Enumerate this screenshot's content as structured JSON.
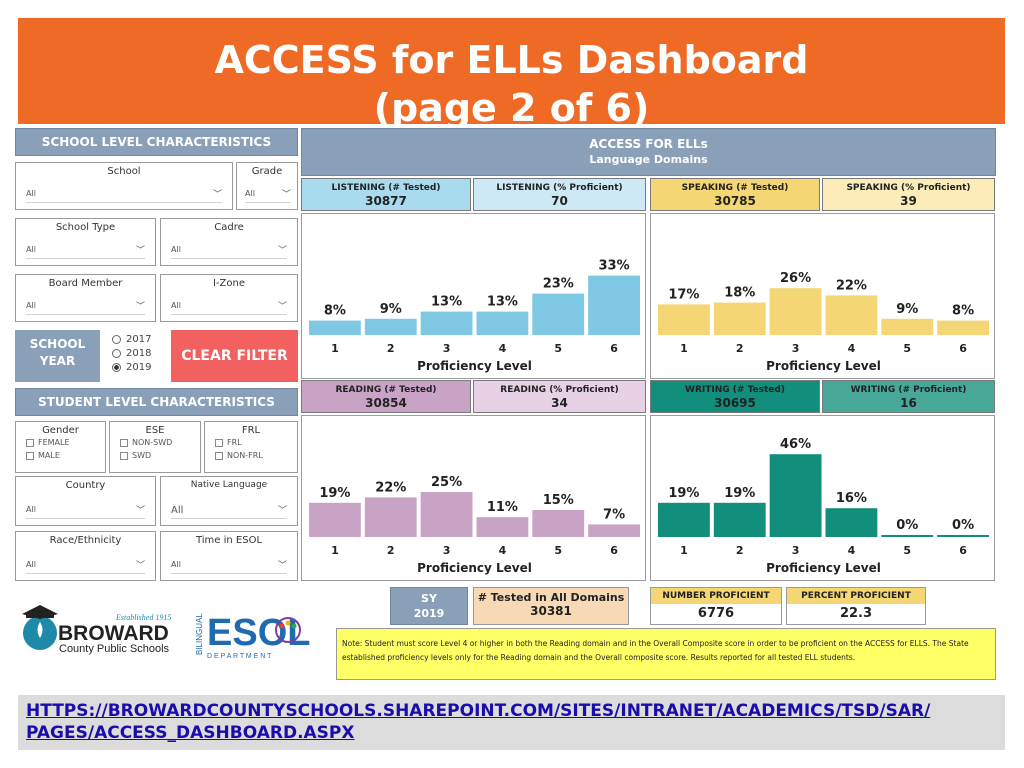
{
  "title": {
    "line1": "ACCESS for ELLs Dashboard",
    "line2": "(page 2 of 6)"
  },
  "school_panel": {
    "heading": "SCHOOL LEVEL CHARACTERISTICS",
    "filters": {
      "school": {
        "label": "School",
        "value": "All"
      },
      "grade": {
        "label": "Grade",
        "value": "All"
      },
      "school_type": {
        "label": "School Type",
        "value": "All"
      },
      "cadre": {
        "label": "Cadre",
        "value": "All"
      },
      "board_member": {
        "label": "Board Member",
        "value": "All"
      },
      "izone": {
        "label": "I-Zone",
        "value": "All"
      }
    },
    "school_year": {
      "label_line1": "SCHOOL",
      "label_line2": "YEAR",
      "options": [
        "2017",
        "2018",
        "2019"
      ],
      "selected": "2019"
    },
    "clear_filter": "CLEAR FILTER"
  },
  "student_panel": {
    "heading": "STUDENT LEVEL CHARACTERISTICS",
    "gender": {
      "label": "Gender",
      "options": [
        "FEMALE",
        "MALE"
      ]
    },
    "ese": {
      "label": "ESE",
      "options": [
        "NON-SWD",
        "SWD"
      ]
    },
    "frl": {
      "label": "FRL",
      "options": [
        "FRL",
        "NON-FRL"
      ]
    },
    "country": {
      "label": "Country",
      "value": "All"
    },
    "native_language": {
      "label": "Native Language",
      "value": "All"
    },
    "race": {
      "label": "Race/Ethnicity",
      "value": "All"
    },
    "time_esol": {
      "label": "Time in ESOL",
      "value": "All"
    }
  },
  "domains_header": {
    "line1": "ACCESS FOR ELLs",
    "line2": "Language Domains"
  },
  "domains": {
    "listening": {
      "tested_label": "LISTENING (# Tested)",
      "tested": "30877",
      "prof_label": "LISTENING (% Proficient)",
      "prof": "70"
    },
    "speaking": {
      "tested_label": "SPEAKING (# Tested)",
      "tested": "30785",
      "prof_label": "SPEAKING (% Proficient)",
      "prof": "39"
    },
    "reading": {
      "tested_label": "READING (# Tested)",
      "tested": "30854",
      "prof_label": "READING (% Proficient)",
      "prof": "34"
    },
    "writing": {
      "tested_label": "WRITING (# Tested)",
      "tested": "30695",
      "prof_label": "WRITING (# Proficient)",
      "prof": "16"
    }
  },
  "colors": {
    "listening": "#7ec8e3",
    "speaking": "#f4d675",
    "reading": "#c9a3c5",
    "writing": "#128e7c",
    "orange": "#ee6a25",
    "clear": "#f36060"
  },
  "chart_data": [
    {
      "type": "bar",
      "name": "listening",
      "categories": [
        "1",
        "2",
        "3",
        "4",
        "5",
        "6"
      ],
      "values": [
        8,
        9,
        13,
        13,
        23,
        33
      ],
      "labels": [
        "8%",
        "9%",
        "13%",
        "13%",
        "23%",
        "33%"
      ],
      "xlabel": "Proficiency Level",
      "ylim": [
        0,
        50
      ]
    },
    {
      "type": "bar",
      "name": "speaking",
      "categories": [
        "1",
        "2",
        "3",
        "4",
        "5",
        "6"
      ],
      "values": [
        17,
        18,
        26,
        22,
        9,
        8
      ],
      "labels": [
        "17%",
        "18%",
        "26%",
        "22%",
        "9%",
        "8%"
      ],
      "xlabel": "Proficiency Level",
      "ylim": [
        0,
        50
      ]
    },
    {
      "type": "bar",
      "name": "reading",
      "categories": [
        "1",
        "2",
        "3",
        "4",
        "5",
        "6"
      ],
      "values": [
        19,
        22,
        25,
        11,
        15,
        7
      ],
      "labels": [
        "19%",
        "22%",
        "25%",
        "11%",
        "15%",
        "7%"
      ],
      "xlabel": "Proficiency Level",
      "ylim": [
        0,
        50
      ]
    },
    {
      "type": "bar",
      "name": "writing",
      "categories": [
        "1",
        "2",
        "3",
        "4",
        "5",
        "6"
      ],
      "values": [
        19,
        19,
        46,
        16,
        0,
        0
      ],
      "labels": [
        "19%",
        "19%",
        "46%",
        "16%",
        "0%",
        "0%"
      ],
      "xlabel": "Proficiency Level",
      "ylim": [
        0,
        50
      ]
    }
  ],
  "summary": {
    "sy_label": "SY",
    "sy_value": "2019",
    "all_domains_label": "# Tested in All Domains",
    "all_domains_value": "30381",
    "num_prof_label": "NUMBER PROFICIENT",
    "num_prof_value": "6776",
    "pct_prof_label": "PERCENT PROFICIENT",
    "pct_prof_value": "22.3"
  },
  "note": "Note: Student must score Level 4 or higher in both the Reading domain and in the Overall Composite score in order to be proficient on the ACCESS for ELLS.  The State established proficiency levels only for the Reading domain and the Overall composite score. Results reported for all tested ELL students.",
  "logos": {
    "broward_established": "Established 1915",
    "broward_name": "BROWARD",
    "broward_sub": "County Public Schools",
    "esol_text": "ESOL",
    "esol_bilingual": "BILINGUAL",
    "esol_department": "D E P A R T M E N T"
  },
  "url": {
    "line1": "HTTPS://BROWARDCOUNTYSCHOOLS.SHAREPOINT.COM/SITES/INTRANET/ACADEMICS/TSD/SAR/",
    "line2": "PAGES/ACCESS_DASHBOARD.ASPX"
  }
}
